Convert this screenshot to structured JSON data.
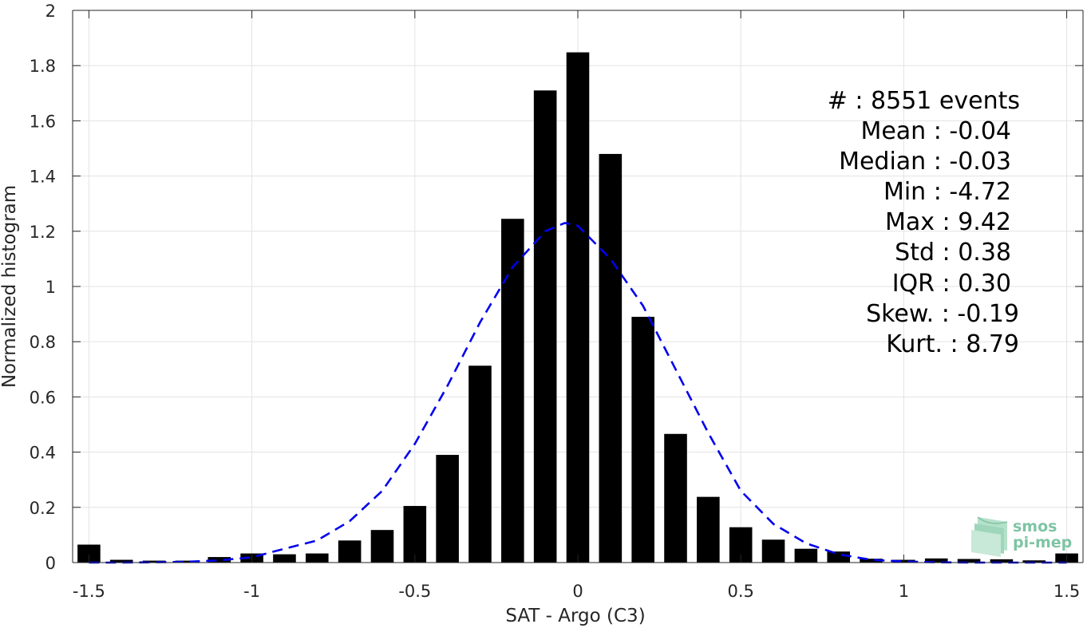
{
  "chart_data": {
    "type": "bar",
    "title": "",
    "xlabel": "SAT - Argo (C3)",
    "ylabel": "Normalized histogram",
    "xlim": [
      -1.55,
      1.55
    ],
    "ylim": [
      0,
      2
    ],
    "xticks": [
      "-1.5",
      "-1",
      "-0.5",
      "0",
      "0.5",
      "1",
      "1.5"
    ],
    "xtick_values": [
      -1.5,
      -1,
      -0.5,
      0,
      0.5,
      1,
      1.5
    ],
    "yticks": [
      "0",
      "0.2",
      "0.4",
      "0.6",
      "0.8",
      "1",
      "1.2",
      "1.4",
      "1.6",
      "1.8",
      "2"
    ],
    "ytick_values": [
      0,
      0.2,
      0.4,
      0.6,
      0.8,
      1,
      1.2,
      1.4,
      1.6,
      1.8,
      2
    ],
    "grid": true,
    "bar_color": "#000000",
    "bars": {
      "x": [
        -1.5,
        -1.4,
        -1.3,
        -1.2,
        -1.1,
        -1.0,
        -0.9,
        -0.8,
        -0.7,
        -0.6,
        -0.5,
        -0.4,
        -0.3,
        -0.2,
        -0.1,
        0.0,
        0.1,
        0.2,
        0.3,
        0.4,
        0.5,
        0.6,
        0.7,
        0.8,
        0.9,
        1.0,
        1.1,
        1.2,
        1.3,
        1.4,
        1.5
      ],
      "values": [
        0.065,
        0.01,
        0.007,
        0.007,
        0.02,
        0.033,
        0.03,
        0.033,
        0.08,
        0.118,
        0.205,
        0.39,
        0.713,
        1.245,
        1.71,
        1.848,
        1.48,
        0.89,
        0.466,
        0.238,
        0.128,
        0.083,
        0.05,
        0.04,
        0.014,
        0.01,
        0.015,
        0.013,
        0.012,
        0.008,
        0.033
      ]
    },
    "fit_curve": {
      "style": "dashed",
      "color": "#0000ee",
      "x": [
        -1.5,
        -1.4,
        -1.3,
        -1.2,
        -1.1,
        -1.0,
        -0.9,
        -0.8,
        -0.7,
        -0.6,
        -0.5,
        -0.4,
        -0.3,
        -0.2,
        -0.1,
        -0.04,
        0.0,
        0.1,
        0.2,
        0.3,
        0.4,
        0.5,
        0.6,
        0.7,
        0.8,
        0.9,
        1.0,
        1.1,
        1.2,
        1.3,
        1.4,
        1.5
      ],
      "y": [
        0.0,
        0.0,
        0.001,
        0.003,
        0.008,
        0.019,
        0.05,
        0.08,
        0.15,
        0.26,
        0.43,
        0.64,
        0.87,
        1.07,
        1.2,
        1.23,
        1.22,
        1.1,
        0.93,
        0.7,
        0.47,
        0.26,
        0.14,
        0.07,
        0.03,
        0.01,
        0.004,
        0.001,
        0.0,
        0.0,
        0.0,
        0.0
      ]
    },
    "annotations": {
      "events": "#  : 8551 events",
      "mean": "Mean : -0.04",
      "median": "Median : -0.03",
      "min": "Min : -4.72",
      "max": "Max : 9.42",
      "std": "Std : 0.38",
      "iqr": "IQR : 0.30",
      "skew": "Skew. : -0.19",
      "kurt": "Kurt. : 8.79"
    }
  },
  "logo": {
    "line1": "smos",
    "line2": "pi-mep"
  }
}
